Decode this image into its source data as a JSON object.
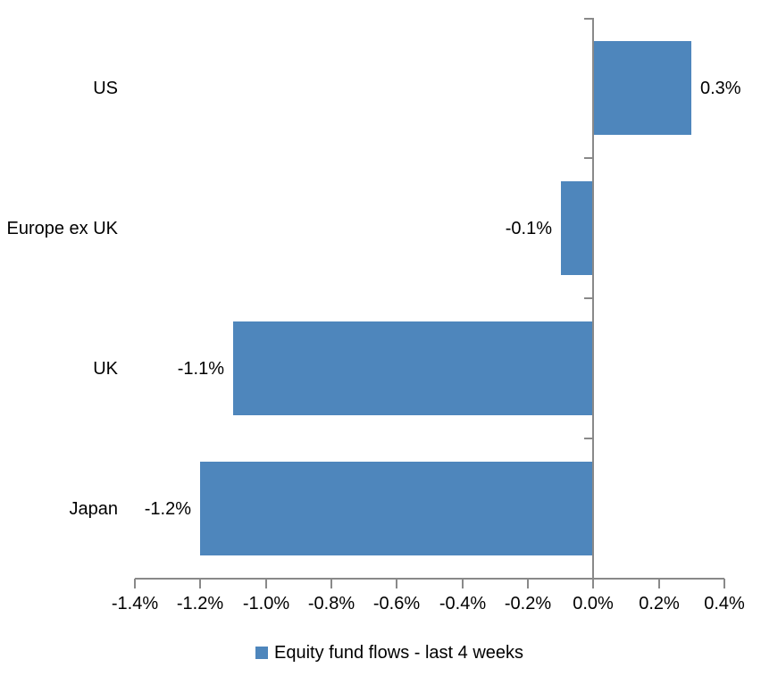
{
  "chart_data": {
    "type": "bar",
    "orientation": "horizontal",
    "title": "",
    "xlabel": "",
    "ylabel": "",
    "categories": [
      "US",
      "Europe ex UK",
      "UK",
      "Japan"
    ],
    "series": [
      {
        "name": "Equity fund flows - last 4 weeks",
        "values": [
          0.3,
          -0.1,
          -1.1,
          -1.2
        ],
        "data_labels": [
          "0.3%",
          "-0.1%",
          "-1.1%",
          "-1.2%"
        ]
      }
    ],
    "series_name": "Equity fund flows - last 4 weeks",
    "xlim": [
      -1.4,
      0.4
    ],
    "x_ticks": [
      -1.4,
      -1.2,
      -1.0,
      -0.8,
      -0.6,
      -0.4,
      -0.2,
      0.0,
      0.2,
      0.4
    ],
    "x_tick_labels": [
      "-1.4%",
      "-1.2%",
      "-1.0%",
      "-0.8%",
      "-0.6%",
      "-0.4%",
      "-0.2%",
      "0.0%",
      "0.2%",
      "0.4%"
    ],
    "grid": false,
    "legend_position": "bottom",
    "bar_color": "#4E86BC",
    "axis_color": "#898989",
    "text_color": "#000000",
    "background_color": "#FFFFFF"
  }
}
